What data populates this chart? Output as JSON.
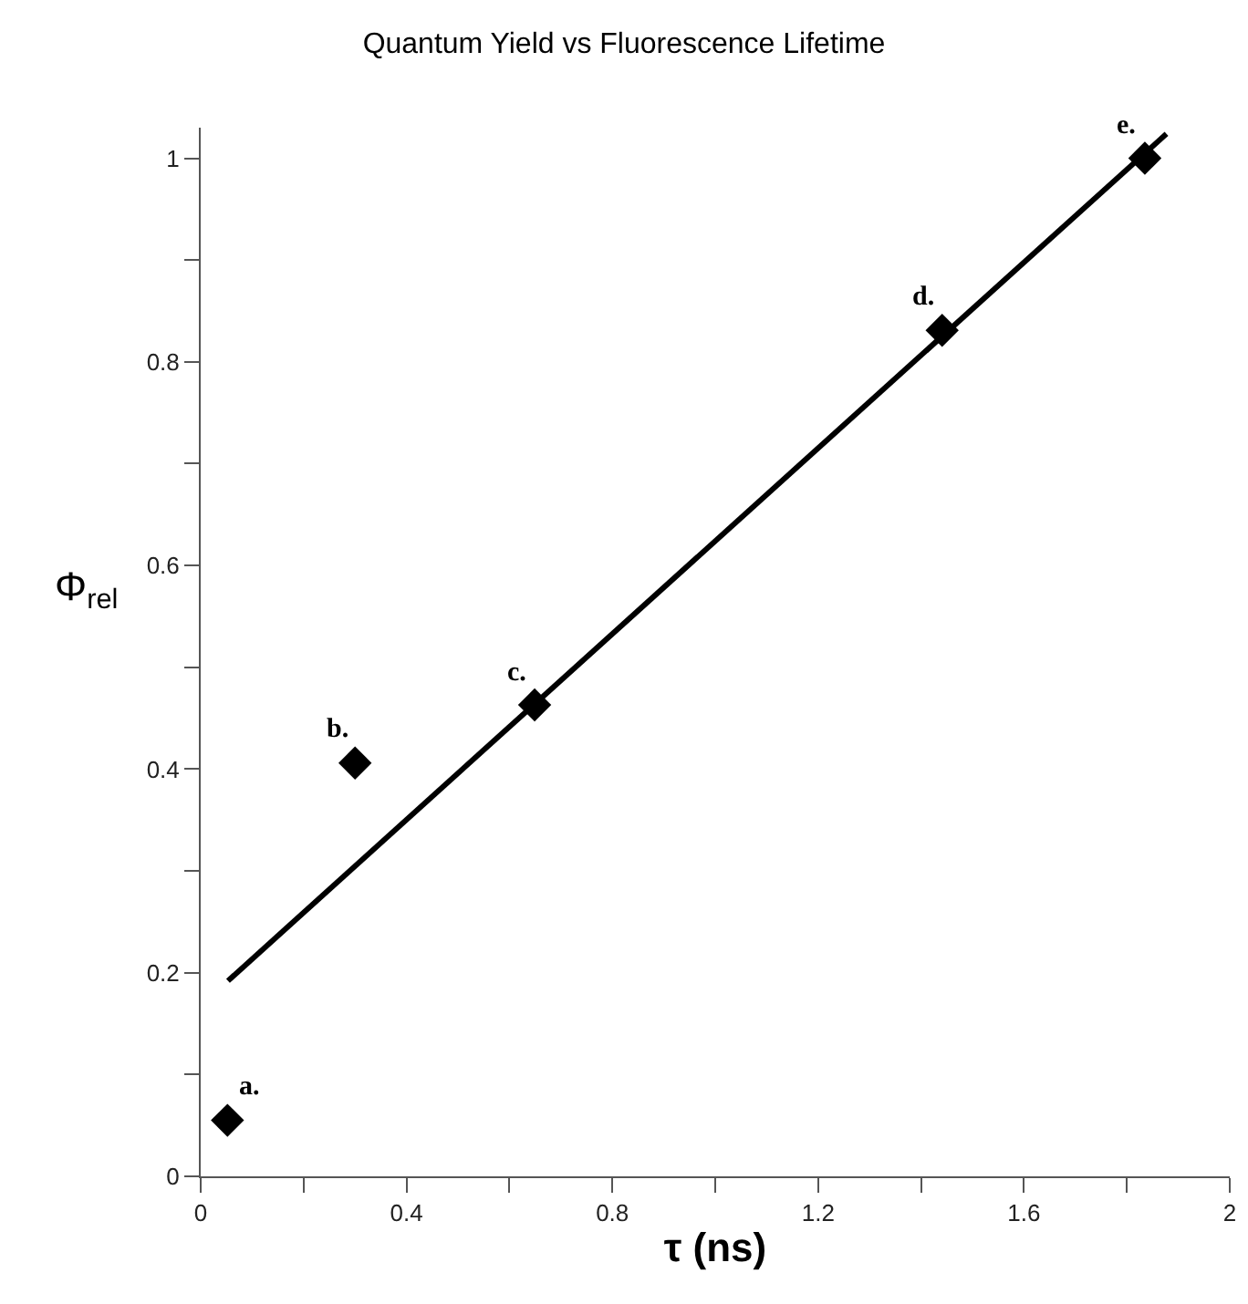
{
  "chart_data": {
    "type": "scatter",
    "title": "Quantum Yield vs Fluorescence Lifetime",
    "xlabel": "τ (ns)",
    "ylabel": "Φ$_{rel}$",
    "x": [
      0.052,
      0.3,
      0.649,
      1.441,
      1.835
    ],
    "series": [
      {
        "type": "scatter",
        "color": "#000000",
        "marker": "diamond",
        "values": [
          0.055,
          0.406,
          0.463,
          0.831,
          1.0
        ]
      },
      {
        "type": "line",
        "color": "#000000",
        "marker": "none",
        "line_style": "solid",
        "x": [
          0.053,
          1.877
        ],
        "values": [
          0.192,
          1.024
        ]
      }
    ],
    "annotations": [
      {
        "text": "a.",
        "x": 0.052,
        "y": 0.055
      },
      {
        "text": "b.",
        "x": 0.3,
        "y": 0.406
      },
      {
        "text": "c.",
        "x": 0.649,
        "y": 0.463
      },
      {
        "text": "d.",
        "x": 1.441,
        "y": 0.831
      },
      {
        "text": "e.",
        "x": 1.835,
        "y": 1.0
      }
    ],
    "xlim": [
      0,
      2
    ],
    "ylim": [
      0,
      1.03
    ],
    "xticks": [
      0,
      {
        "value": 0.2,
        "label": null
      },
      0.4,
      {
        "value": 0.6,
        "label": null
      },
      0.8,
      {
        "value": 1.0,
        "label": null
      },
      1.2,
      {
        "value": 1.4,
        "label": null
      },
      1.6,
      {
        "value": 1.8,
        "label": null
      },
      2
    ],
    "yticks": [
      0,
      {
        "value": 0.1,
        "label": null
      },
      0.2,
      {
        "value": 0.3,
        "label": null
      },
      0.4,
      {
        "value": 0.5,
        "label": null
      },
      0.6,
      {
        "value": 0.7,
        "label": null
      },
      0.8,
      {
        "value": 0.9,
        "label": null
      },
      1
    ],
    "grid": false
  }
}
